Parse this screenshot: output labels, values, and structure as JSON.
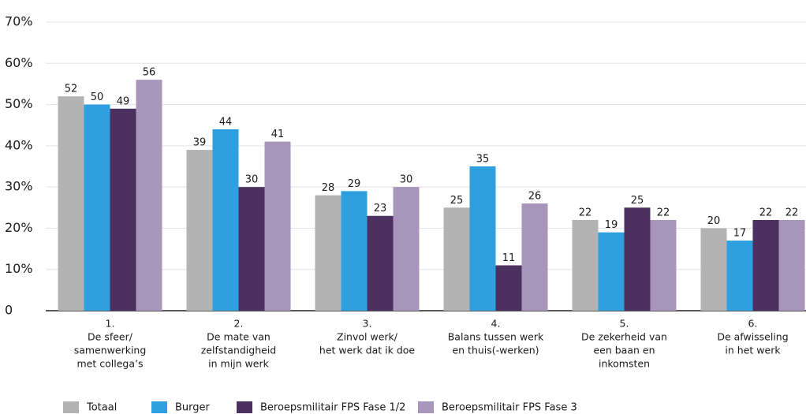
{
  "chart_data": {
    "type": "bar",
    "categories": [
      [
        "1.",
        "De sfeer/",
        "samenwerking",
        "met collega’s"
      ],
      [
        "2.",
        "De mate van",
        "zelfstandigheid",
        "in mijn werk"
      ],
      [
        "3.",
        "Zinvol werk/",
        "het werk dat ik doe"
      ],
      [
        "4.",
        "Balans tussen werk",
        "en thuis(-werken)"
      ],
      [
        "5.",
        "De zekerheid van",
        "een baan en",
        "inkomsten"
      ],
      [
        "6.",
        "De afwisseling",
        "in het werk"
      ]
    ],
    "series": [
      {
        "name": "Totaal",
        "color": "#b3b3b3",
        "values": [
          52,
          39,
          28,
          25,
          22,
          20
        ]
      },
      {
        "name": "Burger",
        "color": "#2e9fdf",
        "values": [
          50,
          44,
          29,
          35,
          19,
          17
        ]
      },
      {
        "name": "Beroepsmilitair FPS Fase 1/2",
        "color": "#4b3060",
        "values": [
          49,
          30,
          23,
          11,
          25,
          22
        ]
      },
      {
        "name": "Beroepsmilitair FPS Fase 3",
        "color": "#a795bb",
        "values": [
          56,
          41,
          30,
          26,
          22,
          22
        ]
      }
    ],
    "ylim": [
      0,
      70
    ],
    "yticks": [
      0,
      {
        "value": 10,
        "label": "10%"
      },
      {
        "value": 20,
        "label": "20%"
      },
      {
        "value": 30,
        "label": "30%"
      },
      {
        "value": 40,
        "label": "40%"
      },
      {
        "value": 50,
        "label": "50%"
      },
      {
        "value": 60,
        "label": "60%"
      },
      {
        "value": 70,
        "label": "70%"
      }
    ],
    "grid": true,
    "legend": "bottom"
  }
}
